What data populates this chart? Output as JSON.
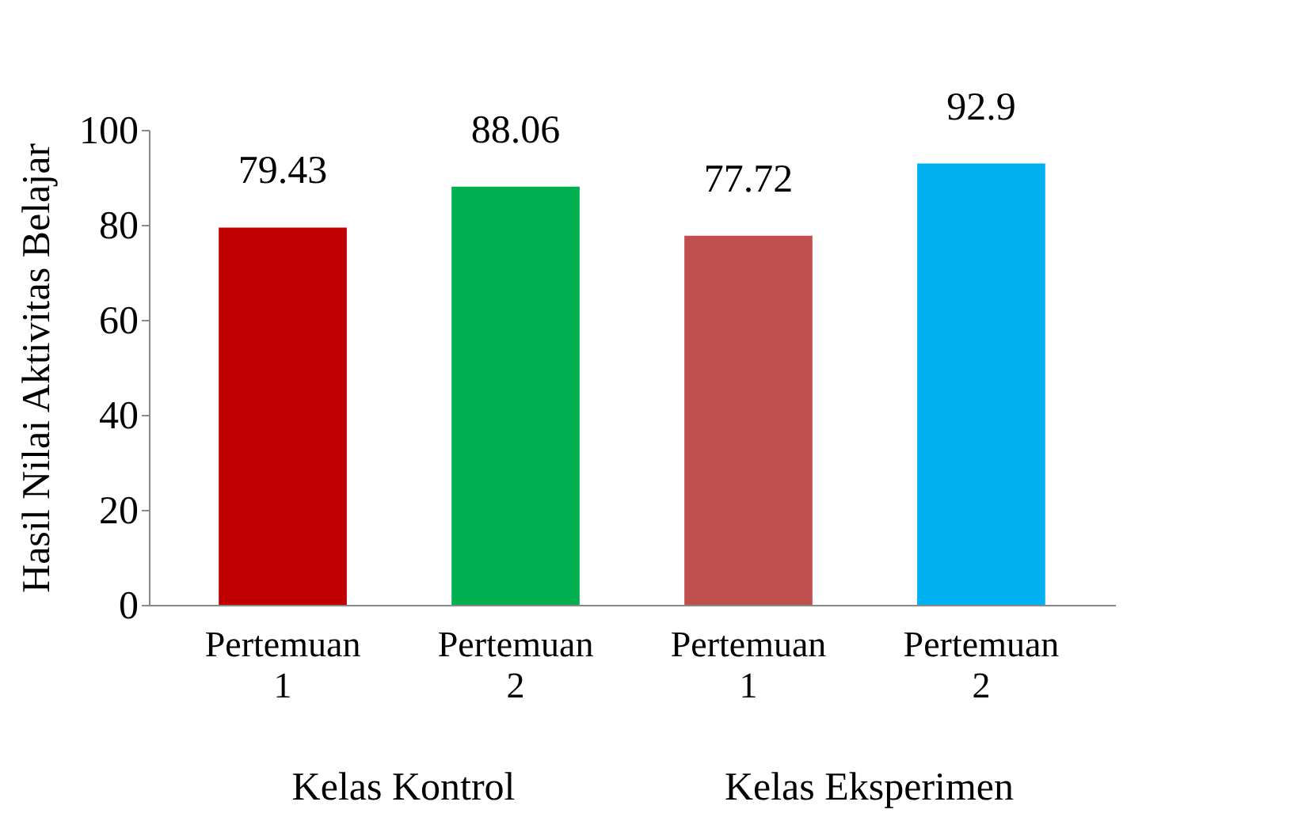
{
  "chart_data": {
    "type": "bar",
    "categories": [
      "Pertemuan 1",
      "Pertemuan 2",
      "Pertemuan 1",
      "Pertemuan 2"
    ],
    "values": [
      79.43,
      88.06,
      77.72,
      92.9
    ],
    "colors": [
      "#c00000",
      "#00b050",
      "#c0504d",
      "#00b0f0"
    ],
    "ylabel": "Hasil Nilai Aktivitas Belajar",
    "ylim": [
      0,
      100
    ],
    "yticks": [
      0,
      20,
      40,
      60,
      80,
      100
    ],
    "grid": false,
    "data_labels": true,
    "annotations": [
      "Kelas Kontrol",
      "Kelas Eksperimen"
    ]
  }
}
